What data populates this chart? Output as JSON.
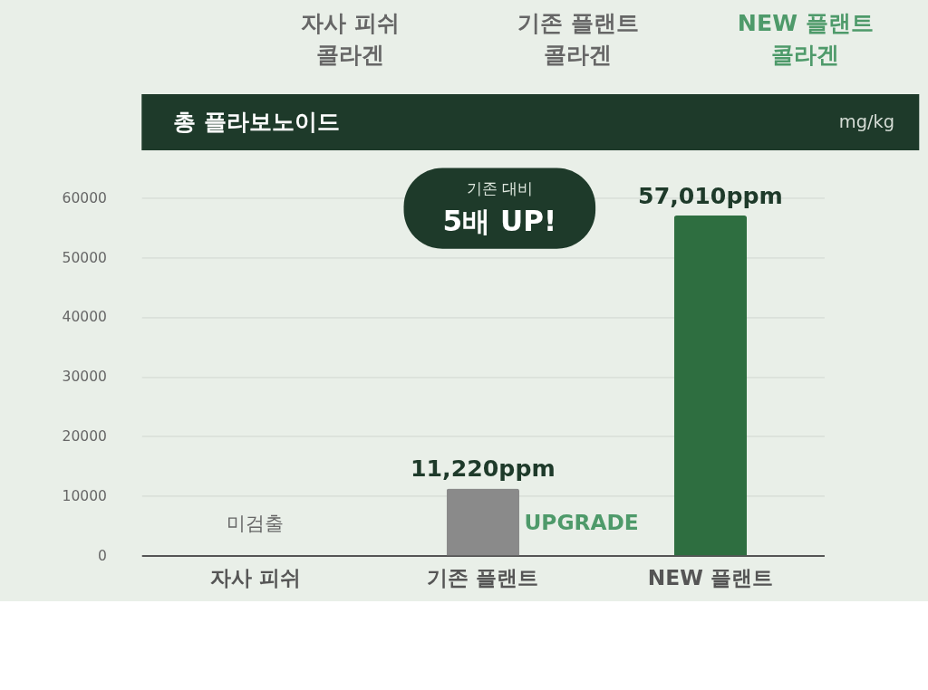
{
  "chart_data": {
    "type": "bar",
    "title": "총 플라보노이드",
    "ylabel": "mg/kg",
    "categories": [
      "자사 피쉬",
      "기존 플랜트",
      "NEW 플랜트"
    ],
    "values": [
      null,
      11220,
      57010
    ],
    "colors": [
      "#8a8a8a",
      "#8a8a8a",
      "#2e6e40"
    ],
    "value_labels": [
      "미검출",
      "11,220ppm",
      "57,010ppm"
    ],
    "ylim": [
      0,
      60000
    ],
    "yticks": [
      0,
      10000,
      20000,
      30000,
      40000,
      50000,
      60000
    ],
    "grid": "y",
    "annotations": [
      "자사 피쉬 콜라겐",
      "기존 플랜트 콜라겐",
      "NEW 플랜트 콜라겐",
      "기존 대비 5배 UP!",
      "UPGRADE"
    ]
  }
}
